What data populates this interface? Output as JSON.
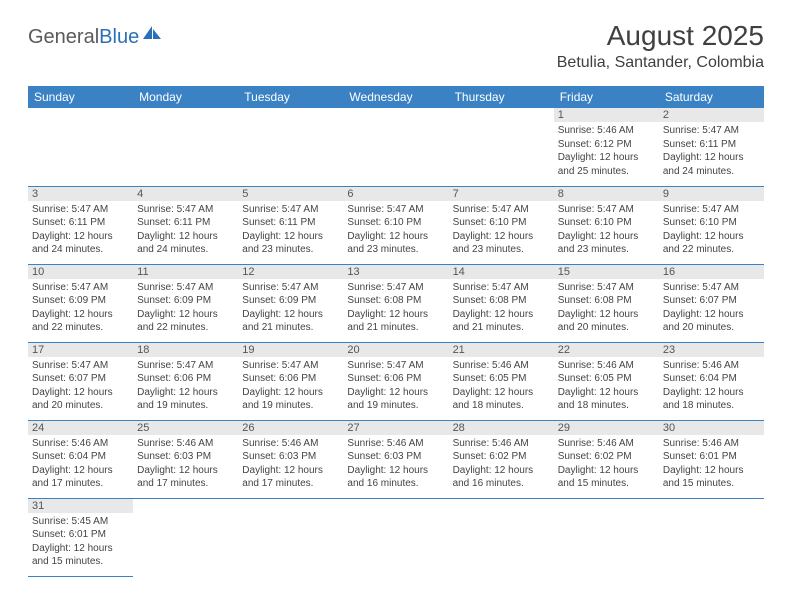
{
  "logo": {
    "part1": "General",
    "part2": "Blue"
  },
  "title": "August 2025",
  "location": "Betulia, Santander, Colombia",
  "colors": {
    "header_bg": "#3a82c4",
    "header_text": "#ffffff",
    "daynum_bg": "#e8e8e8",
    "border": "#3a82c4",
    "logo_gray": "#5a5a5a",
    "logo_blue": "#2970b8"
  },
  "weekdays": [
    "Sunday",
    "Monday",
    "Tuesday",
    "Wednesday",
    "Thursday",
    "Friday",
    "Saturday"
  ],
  "weeks": [
    [
      null,
      null,
      null,
      null,
      null,
      {
        "n": "1",
        "sr": "Sunrise: 5:46 AM",
        "ss": "Sunset: 6:12 PM",
        "d1": "Daylight: 12 hours",
        "d2": "and 25 minutes."
      },
      {
        "n": "2",
        "sr": "Sunrise: 5:47 AM",
        "ss": "Sunset: 6:11 PM",
        "d1": "Daylight: 12 hours",
        "d2": "and 24 minutes."
      }
    ],
    [
      {
        "n": "3",
        "sr": "Sunrise: 5:47 AM",
        "ss": "Sunset: 6:11 PM",
        "d1": "Daylight: 12 hours",
        "d2": "and 24 minutes."
      },
      {
        "n": "4",
        "sr": "Sunrise: 5:47 AM",
        "ss": "Sunset: 6:11 PM",
        "d1": "Daylight: 12 hours",
        "d2": "and 24 minutes."
      },
      {
        "n": "5",
        "sr": "Sunrise: 5:47 AM",
        "ss": "Sunset: 6:11 PM",
        "d1": "Daylight: 12 hours",
        "d2": "and 23 minutes."
      },
      {
        "n": "6",
        "sr": "Sunrise: 5:47 AM",
        "ss": "Sunset: 6:10 PM",
        "d1": "Daylight: 12 hours",
        "d2": "and 23 minutes."
      },
      {
        "n": "7",
        "sr": "Sunrise: 5:47 AM",
        "ss": "Sunset: 6:10 PM",
        "d1": "Daylight: 12 hours",
        "d2": "and 23 minutes."
      },
      {
        "n": "8",
        "sr": "Sunrise: 5:47 AM",
        "ss": "Sunset: 6:10 PM",
        "d1": "Daylight: 12 hours",
        "d2": "and 23 minutes."
      },
      {
        "n": "9",
        "sr": "Sunrise: 5:47 AM",
        "ss": "Sunset: 6:10 PM",
        "d1": "Daylight: 12 hours",
        "d2": "and 22 minutes."
      }
    ],
    [
      {
        "n": "10",
        "sr": "Sunrise: 5:47 AM",
        "ss": "Sunset: 6:09 PM",
        "d1": "Daylight: 12 hours",
        "d2": "and 22 minutes."
      },
      {
        "n": "11",
        "sr": "Sunrise: 5:47 AM",
        "ss": "Sunset: 6:09 PM",
        "d1": "Daylight: 12 hours",
        "d2": "and 22 minutes."
      },
      {
        "n": "12",
        "sr": "Sunrise: 5:47 AM",
        "ss": "Sunset: 6:09 PM",
        "d1": "Daylight: 12 hours",
        "d2": "and 21 minutes."
      },
      {
        "n": "13",
        "sr": "Sunrise: 5:47 AM",
        "ss": "Sunset: 6:08 PM",
        "d1": "Daylight: 12 hours",
        "d2": "and 21 minutes."
      },
      {
        "n": "14",
        "sr": "Sunrise: 5:47 AM",
        "ss": "Sunset: 6:08 PM",
        "d1": "Daylight: 12 hours",
        "d2": "and 21 minutes."
      },
      {
        "n": "15",
        "sr": "Sunrise: 5:47 AM",
        "ss": "Sunset: 6:08 PM",
        "d1": "Daylight: 12 hours",
        "d2": "and 20 minutes."
      },
      {
        "n": "16",
        "sr": "Sunrise: 5:47 AM",
        "ss": "Sunset: 6:07 PM",
        "d1": "Daylight: 12 hours",
        "d2": "and 20 minutes."
      }
    ],
    [
      {
        "n": "17",
        "sr": "Sunrise: 5:47 AM",
        "ss": "Sunset: 6:07 PM",
        "d1": "Daylight: 12 hours",
        "d2": "and 20 minutes."
      },
      {
        "n": "18",
        "sr": "Sunrise: 5:47 AM",
        "ss": "Sunset: 6:06 PM",
        "d1": "Daylight: 12 hours",
        "d2": "and 19 minutes."
      },
      {
        "n": "19",
        "sr": "Sunrise: 5:47 AM",
        "ss": "Sunset: 6:06 PM",
        "d1": "Daylight: 12 hours",
        "d2": "and 19 minutes."
      },
      {
        "n": "20",
        "sr": "Sunrise: 5:47 AM",
        "ss": "Sunset: 6:06 PM",
        "d1": "Daylight: 12 hours",
        "d2": "and 19 minutes."
      },
      {
        "n": "21",
        "sr": "Sunrise: 5:46 AM",
        "ss": "Sunset: 6:05 PM",
        "d1": "Daylight: 12 hours",
        "d2": "and 18 minutes."
      },
      {
        "n": "22",
        "sr": "Sunrise: 5:46 AM",
        "ss": "Sunset: 6:05 PM",
        "d1": "Daylight: 12 hours",
        "d2": "and 18 minutes."
      },
      {
        "n": "23",
        "sr": "Sunrise: 5:46 AM",
        "ss": "Sunset: 6:04 PM",
        "d1": "Daylight: 12 hours",
        "d2": "and 18 minutes."
      }
    ],
    [
      {
        "n": "24",
        "sr": "Sunrise: 5:46 AM",
        "ss": "Sunset: 6:04 PM",
        "d1": "Daylight: 12 hours",
        "d2": "and 17 minutes."
      },
      {
        "n": "25",
        "sr": "Sunrise: 5:46 AM",
        "ss": "Sunset: 6:03 PM",
        "d1": "Daylight: 12 hours",
        "d2": "and 17 minutes."
      },
      {
        "n": "26",
        "sr": "Sunrise: 5:46 AM",
        "ss": "Sunset: 6:03 PM",
        "d1": "Daylight: 12 hours",
        "d2": "and 17 minutes."
      },
      {
        "n": "27",
        "sr": "Sunrise: 5:46 AM",
        "ss": "Sunset: 6:03 PM",
        "d1": "Daylight: 12 hours",
        "d2": "and 16 minutes."
      },
      {
        "n": "28",
        "sr": "Sunrise: 5:46 AM",
        "ss": "Sunset: 6:02 PM",
        "d1": "Daylight: 12 hours",
        "d2": "and 16 minutes."
      },
      {
        "n": "29",
        "sr": "Sunrise: 5:46 AM",
        "ss": "Sunset: 6:02 PM",
        "d1": "Daylight: 12 hours",
        "d2": "and 15 minutes."
      },
      {
        "n": "30",
        "sr": "Sunrise: 5:46 AM",
        "ss": "Sunset: 6:01 PM",
        "d1": "Daylight: 12 hours",
        "d2": "and 15 minutes."
      }
    ],
    [
      {
        "n": "31",
        "sr": "Sunrise: 5:45 AM",
        "ss": "Sunset: 6:01 PM",
        "d1": "Daylight: 12 hours",
        "d2": "and 15 minutes."
      },
      null,
      null,
      null,
      null,
      null,
      null
    ]
  ]
}
